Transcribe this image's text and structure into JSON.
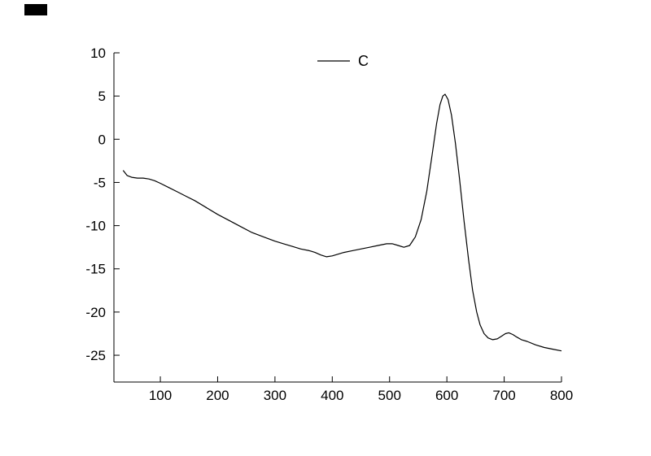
{
  "figure": {
    "background": "#ffffff",
    "corner_mark_color": "#000000"
  },
  "chart_data": {
    "type": "line",
    "title": "",
    "xlabel": "",
    "ylabel": "",
    "grid": false,
    "legend_position": "top-center",
    "legend": [
      {
        "name": "C",
        "color": "#000000"
      }
    ],
    "xlim": [
      19,
      800
    ],
    "ylim": [
      -28.1,
      10
    ],
    "x_ticks": [
      100,
      200,
      300,
      400,
      500,
      600,
      700,
      800
    ],
    "y_ticks": [
      10,
      5,
      0,
      -5,
      -10,
      -15,
      -20,
      -25
    ],
    "axis_color": "#000000",
    "series": [
      {
        "name": "C",
        "color": "#000000",
        "x": [
          35,
          42,
          50,
          60,
          70,
          80,
          90,
          100,
          115,
          130,
          145,
          160,
          180,
          200,
          220,
          240,
          260,
          280,
          300,
          315,
          330,
          345,
          360,
          370,
          380,
          390,
          400,
          410,
          420,
          435,
          450,
          465,
          480,
          495,
          505,
          515,
          525,
          535,
          545,
          555,
          565,
          575,
          582,
          588,
          593,
          597,
          602,
          608,
          615,
          622,
          630,
          638,
          645,
          652,
          658,
          665,
          672,
          680,
          688,
          695,
          702,
          708,
          715,
          722,
          730,
          740,
          755,
          770,
          785,
          800
        ],
        "y": [
          -3.6,
          -4.2,
          -4.4,
          -4.5,
          -4.5,
          -4.6,
          -4.8,
          -5.1,
          -5.6,
          -6.1,
          -6.6,
          -7.1,
          -7.9,
          -8.7,
          -9.4,
          -10.1,
          -10.8,
          -11.3,
          -11.8,
          -12.1,
          -12.4,
          -12.7,
          -12.9,
          -13.1,
          -13.4,
          -13.6,
          -13.5,
          -13.3,
          -13.1,
          -12.9,
          -12.7,
          -12.5,
          -12.3,
          -12.1,
          -12.1,
          -12.3,
          -12.5,
          -12.3,
          -11.3,
          -9.3,
          -6.0,
          -1.5,
          1.8,
          4.0,
          5.0,
          5.2,
          4.6,
          2.8,
          -0.5,
          -4.5,
          -9.5,
          -14.0,
          -17.5,
          -20.0,
          -21.5,
          -22.5,
          -23.0,
          -23.2,
          -23.1,
          -22.8,
          -22.5,
          -22.4,
          -22.6,
          -22.9,
          -23.2,
          -23.4,
          -23.8,
          -24.1,
          -24.3,
          -24.5
        ]
      }
    ]
  }
}
